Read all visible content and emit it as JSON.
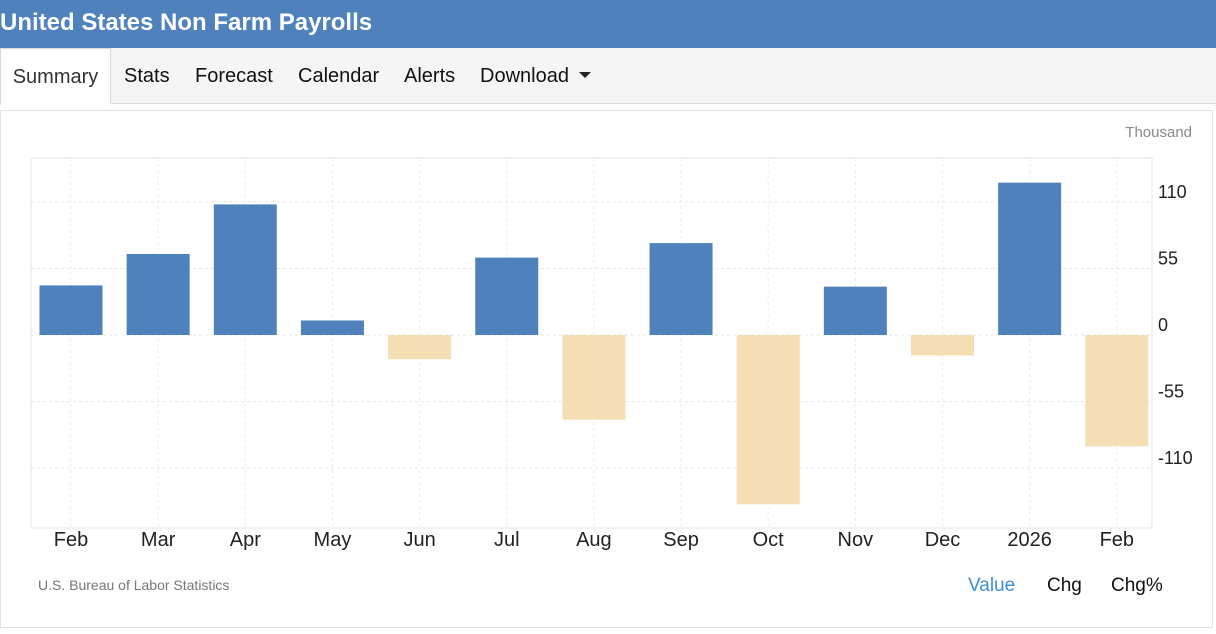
{
  "header": {
    "title": "United States Non Farm Payrolls"
  },
  "tabs": [
    {
      "label": "Summary",
      "active": true
    },
    {
      "label": "Stats"
    },
    {
      "label": "Forecast"
    },
    {
      "label": "Calendar"
    },
    {
      "label": "Alerts"
    },
    {
      "label": "Download",
      "has_dropdown": true
    }
  ],
  "chart_data": {
    "type": "bar",
    "unit_label": "Thousand",
    "categories": [
      "Feb",
      "Mar",
      "Apr",
      "May",
      "Jun",
      "Jul",
      "Aug",
      "Sep",
      "Oct",
      "Nov",
      "Dec",
      "2026",
      "Feb"
    ],
    "values": [
      41,
      67,
      108,
      12,
      -20,
      64,
      -70,
      76,
      -140,
      40,
      -17,
      126,
      -92
    ],
    "yticks": [
      110,
      55,
      0,
      -55,
      -110
    ],
    "ylim": [
      -160,
      145
    ],
    "grid": true,
    "y_axis_position": "right",
    "colors": {
      "positive": "#4f81bd",
      "negative": "#f5deb3"
    }
  },
  "footer": {
    "source": "U.S. Bureau of Labor Statistics",
    "toggles": [
      {
        "label": "Value",
        "active": true
      },
      {
        "label": "Chg"
      },
      {
        "label": "Chg%"
      }
    ]
  }
}
